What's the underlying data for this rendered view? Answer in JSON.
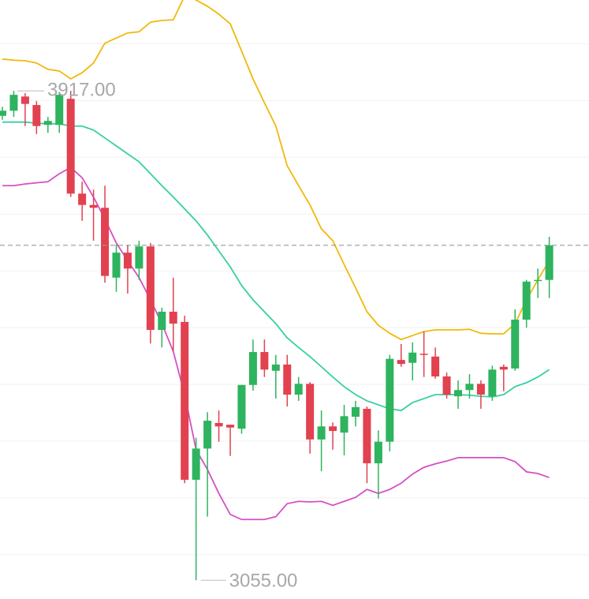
{
  "chart_data": {
    "type": "candlestick",
    "ylim": [
      3022,
      4077
    ],
    "yticks": [
      3100,
      3200,
      3300,
      3400,
      3500,
      3600,
      3700,
      3800,
      3900,
      4000
    ],
    "grid": true,
    "up_color": "#2eb35f",
    "down_color": "#e2414f",
    "open": [
      3873,
      3882,
      3907,
      3892,
      3857,
      3857,
      3903,
      3736,
      3716,
      3711,
      3588,
      3632,
      3604,
      3643,
      3496,
      3528,
      3510,
      3232,
      3287,
      3332,
      3329,
      3322,
      3399,
      3457,
      3424,
      3435,
      3382,
      3401,
      3303,
      3326,
      3315,
      3343,
      3357,
      3261,
      3299,
      3443,
      3438,
      3454,
      3449,
      3414,
      3379,
      3390,
      3401,
      3379,
      3431,
      3428,
      3514,
      3582,
      3584
    ],
    "high": [
      3889,
      3917,
      3913,
      3899,
      3871,
      3915,
      3917,
      3757,
      3743,
      3750,
      3646,
      3646,
      3653,
      3649,
      3535,
      3588,
      3521,
      3306,
      3351,
      3354,
      3329,
      3399,
      3479,
      3479,
      3452,
      3452,
      3413,
      3404,
      3354,
      3333,
      3364,
      3371,
      3361,
      3319,
      3452,
      3471,
      3474,
      3493,
      3465,
      3421,
      3407,
      3418,
      3407,
      3433,
      3435,
      3532,
      3584,
      3604,
      3660
    ],
    "low": [
      3866,
      3871,
      3855,
      3841,
      3843,
      3843,
      3730,
      3688,
      3653,
      3579,
      3563,
      3560,
      3584,
      3472,
      3465,
      3458,
      3226,
      3055,
      3167,
      3299,
      3274,
      3313,
      3389,
      3413,
      3375,
      3361,
      3371,
      3278,
      3247,
      3285,
      3275,
      3326,
      3226,
      3199,
      3282,
      3431,
      3407,
      3413,
      3410,
      3375,
      3357,
      3375,
      3357,
      3371,
      3388,
      3424,
      3500,
      3552,
      3552
    ],
    "close": [
      3882,
      3910,
      3894,
      3855,
      3864,
      3910,
      3736,
      3716,
      3711,
      3591,
      3632,
      3604,
      3643,
      3496,
      3528,
      3507,
      3232,
      3287,
      3336,
      3326,
      3324,
      3399,
      3457,
      3426,
      3435,
      3382,
      3401,
      3303,
      3326,
      3318,
      3344,
      3360,
      3261,
      3299,
      3445,
      3436,
      3456,
      3452,
      3414,
      3382,
      3390,
      3401,
      3382,
      3426,
      3426,
      3514,
      3581,
      3584,
      3645
    ],
    "bands": [
      {
        "color": "#f0b90b",
        "values": [
          3973,
          3971,
          3970,
          3966,
          3955,
          3952,
          3938,
          3949,
          3966,
          4001,
          4010,
          4019,
          4021,
          4038,
          4041,
          4042,
          4084,
          4077,
          4066,
          4052,
          4035,
          3987,
          3938,
          3896,
          3855,
          3785,
          3750,
          3716,
          3674,
          3653,
          3611,
          3570,
          3528,
          3504,
          3490,
          3479,
          3486,
          3493,
          3496,
          3496,
          3496,
          3497,
          3490,
          3489,
          3489,
          3507,
          3549,
          3584,
          3618
        ]
      },
      {
        "color": "#36cfa3",
        "values": [
          3862,
          3862,
          3862,
          3860,
          3859,
          3859,
          3855,
          3855,
          3848,
          3834,
          3820,
          3806,
          3792,
          3771,
          3750,
          3730,
          3709,
          3688,
          3663,
          3635,
          3607,
          3574,
          3549,
          3528,
          3507,
          3482,
          3465,
          3449,
          3431,
          3413,
          3396,
          3382,
          3371,
          3364,
          3357,
          3354,
          3368,
          3375,
          3382,
          3382,
          3382,
          3381,
          3379,
          3378,
          3382,
          3396,
          3403,
          3413,
          3426
        ]
      },
      {
        "color": "#d64fc6",
        "values": [
          3750,
          3750,
          3753,
          3755,
          3757,
          3771,
          3782,
          3764,
          3730,
          3691,
          3649,
          3618,
          3588,
          3549,
          3507,
          3458,
          3382,
          3285,
          3250,
          3208,
          3171,
          3162,
          3162,
          3162,
          3167,
          3190,
          3194,
          3193,
          3194,
          3187,
          3194,
          3201,
          3215,
          3208,
          3215,
          3226,
          3242,
          3254,
          3260,
          3265,
          3271,
          3271,
          3271,
          3271,
          3271,
          3264,
          3246,
          3243,
          3236
        ]
      }
    ],
    "annotations": [
      {
        "text": "3917.00",
        "value": 3917
      },
      {
        "text": "3055.00",
        "value": 3055
      }
    ]
  }
}
